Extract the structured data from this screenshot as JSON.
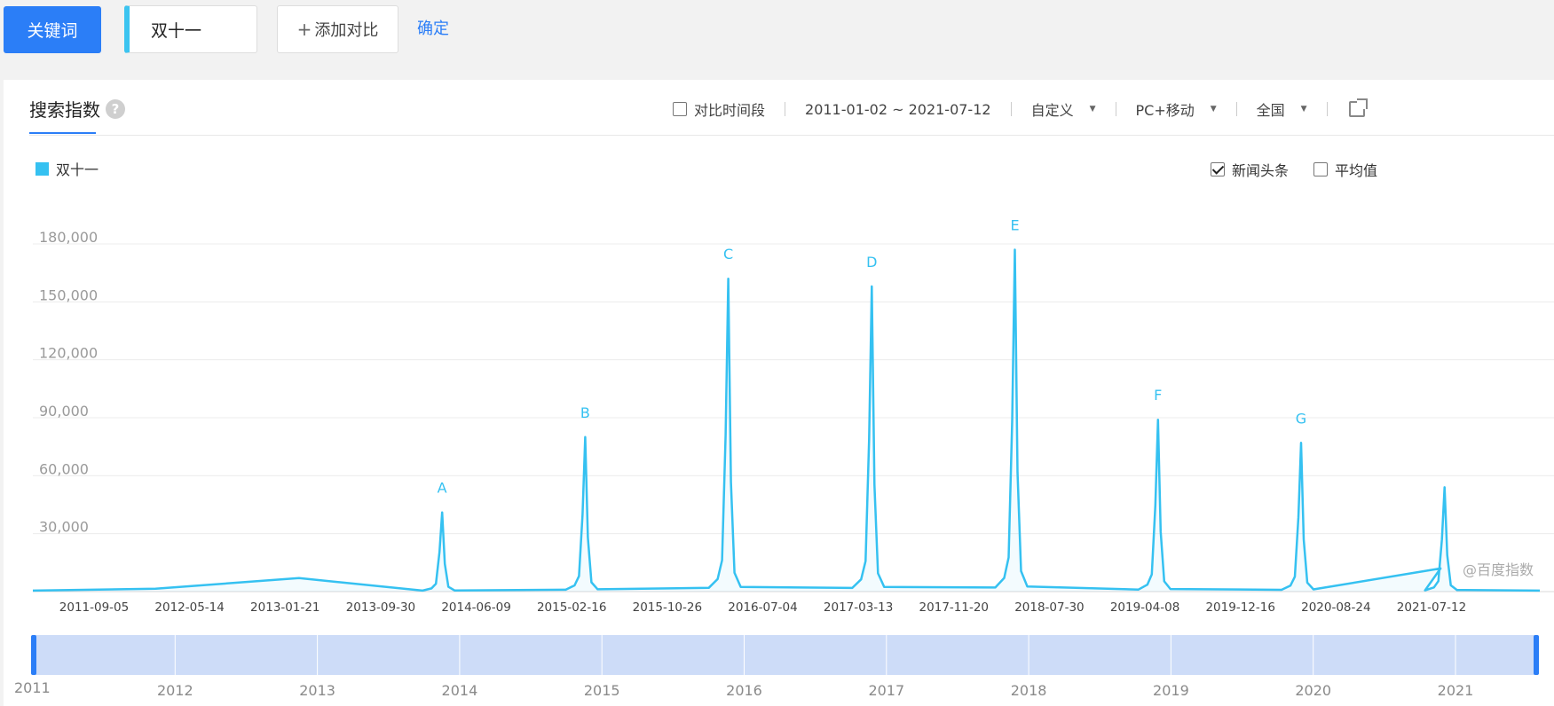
{
  "topbar": {
    "keyword_button": "关键词",
    "keyword_value": "双十一",
    "add_compare_plus": "+",
    "add_compare_label": "添加对比",
    "confirm_label": "确定"
  },
  "panel": {
    "title": "搜索指数",
    "help_icon": "question-icon",
    "help_glyph": "?",
    "compare_period_label": "对比时间段",
    "date_range": "2011-01-02 ~ 2021-07-12",
    "period_select": "自定义",
    "device_select": "PC+移动",
    "region_select": "全国",
    "share_icon": "export-icon",
    "legend_label": "双十一",
    "news_label": "新闻头条",
    "news_checked": true,
    "average_label": "平均值",
    "average_checked": false,
    "watermark": "@百度指数",
    "colors": {
      "accent": "#2b7ef7",
      "series": "#35c1f1",
      "range_fill": "#cddcf8",
      "range_handle": "#2b7ef7"
    }
  },
  "chart_data": {
    "type": "line",
    "ylim": [
      0,
      180000
    ],
    "y_ticks": [
      "30,000",
      "60,000",
      "90,000",
      "120,000",
      "150,000",
      "180,000"
    ],
    "x_tick_labels": [
      "2011-09-05",
      "2012-05-14",
      "2013-01-21",
      "2013-09-30",
      "2014-06-09",
      "2015-02-16",
      "2015-10-26",
      "2016-07-04",
      "2017-03-13",
      "2017-11-20",
      "2018-07-30",
      "2019-04-08",
      "2019-12-16",
      "2020-08-24",
      "2021-07-12"
    ],
    "x_range": [
      "2011-01-02",
      "2021-07-12"
    ],
    "grid": true,
    "series": [
      {
        "name": "双十一",
        "x": [
          "2011-01-02",
          "2011-11-11",
          "2012-11-11",
          "2013-11-11",
          "2014-11-11",
          "2015-11-11",
          "2016-11-11",
          "2017-11-11",
          "2018-11-11",
          "2019-11-11",
          "2020-11-01",
          "2020-11-11",
          "2021-07-12"
        ],
        "values": [
          500,
          1500,
          7000,
          41000,
          80000,
          162000,
          158000,
          177000,
          89000,
          77000,
          12000,
          54000,
          500
        ]
      }
    ],
    "annotations": [
      {
        "label": "A",
        "date": "2013-11-11",
        "value": 41000
      },
      {
        "label": "B",
        "date": "2014-11-11",
        "value": 80000
      },
      {
        "label": "C",
        "date": "2015-11-11",
        "value": 162000
      },
      {
        "label": "D",
        "date": "2016-11-11",
        "value": 158000
      },
      {
        "label": "E",
        "date": "2017-11-11",
        "value": 177000
      },
      {
        "label": "F",
        "date": "2018-11-11",
        "value": 89000
      },
      {
        "label": "G",
        "date": "2019-11-11",
        "value": 77000
      }
    ]
  },
  "range_selector": {
    "start_label": "2011",
    "year_labels": [
      "2012",
      "2013",
      "2014",
      "2015",
      "2016",
      "2017",
      "2018",
      "2019",
      "2020",
      "2021"
    ],
    "selected_from": "2011-01-02",
    "selected_to": "2021-07-12"
  }
}
